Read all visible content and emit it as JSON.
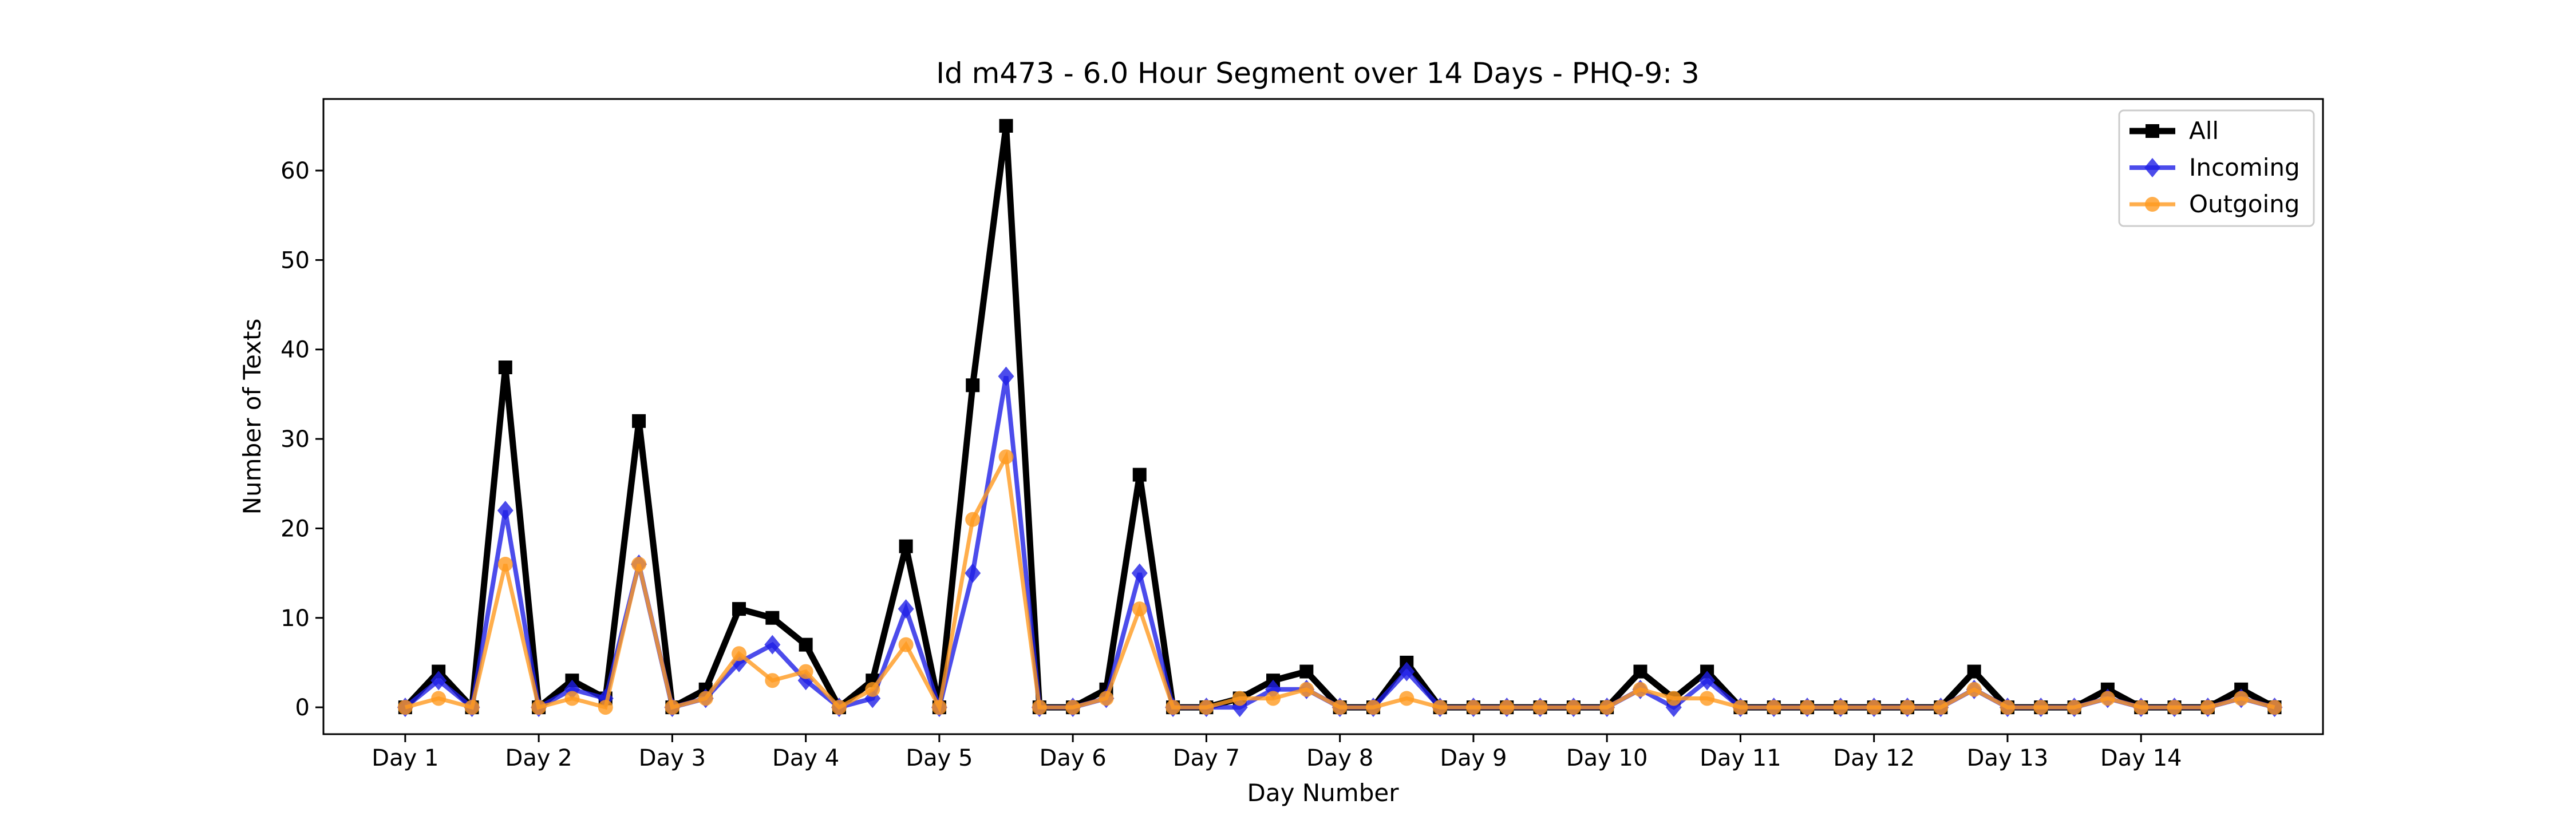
{
  "chart_data": {
    "type": "line",
    "title": "Id m473 - 6.0 Hour Segment over 14 Days - PHQ-9: 3",
    "xlabel": "Day Number",
    "ylabel": "Number of Texts",
    "x_tick_labels": [
      "Day 1",
      "Day 2",
      "Day 3",
      "Day 4",
      "Day 5",
      "Day 6",
      "Day 7",
      "Day 8",
      "Day 9",
      "Day 10",
      "Day 11",
      "Day 12",
      "Day 13",
      "Day 14"
    ],
    "y_ticks": [
      0,
      10,
      20,
      30,
      40,
      50,
      60
    ],
    "ylim": [
      -3,
      68
    ],
    "x_index_range": [
      -2.45,
      57.45
    ],
    "segments_per_day": 4,
    "grid": false,
    "legend_position": "top-right",
    "series": [
      {
        "name": "All",
        "color": "#000000",
        "marker": "square",
        "values": [
          0,
          4,
          0,
          38,
          0,
          3,
          1,
          32,
          0,
          2,
          11,
          10,
          7,
          0,
          3,
          18,
          0,
          36,
          65,
          0,
          0,
          2,
          26,
          0,
          0,
          1,
          3,
          4,
          0,
          0,
          5,
          0,
          0,
          0,
          0,
          0,
          0,
          4,
          1,
          4,
          0,
          0,
          0,
          0,
          0,
          0,
          0,
          4,
          0,
          0,
          0,
          2,
          0,
          0,
          0,
          2,
          0
        ]
      },
      {
        "name": "Incoming",
        "color": "#1f1fe6",
        "marker": "diamond",
        "values": [
          0,
          3,
          0,
          22,
          0,
          2,
          1,
          16,
          0,
          1,
          5,
          7,
          3,
          0,
          1,
          11,
          0,
          15,
          37,
          0,
          0,
          1,
          15,
          0,
          0,
          0,
          2,
          2,
          0,
          0,
          4,
          0,
          0,
          0,
          0,
          0,
          0,
          2,
          0,
          3,
          0,
          0,
          0,
          0,
          0,
          0,
          0,
          2,
          0,
          0,
          0,
          1,
          0,
          0,
          0,
          1,
          0
        ]
      },
      {
        "name": "Outgoing",
        "color": "#ff9a1f",
        "marker": "circle",
        "values": [
          0,
          1,
          0,
          16,
          0,
          1,
          0,
          16,
          0,
          1,
          6,
          3,
          4,
          0,
          2,
          7,
          0,
          21,
          28,
          0,
          0,
          1,
          11,
          0,
          0,
          1,
          1,
          2,
          0,
          0,
          1,
          0,
          0,
          0,
          0,
          0,
          0,
          2,
          1,
          1,
          0,
          0,
          0,
          0,
          0,
          0,
          0,
          2,
          0,
          0,
          0,
          1,
          0,
          0,
          0,
          1,
          0
        ]
      }
    ]
  }
}
